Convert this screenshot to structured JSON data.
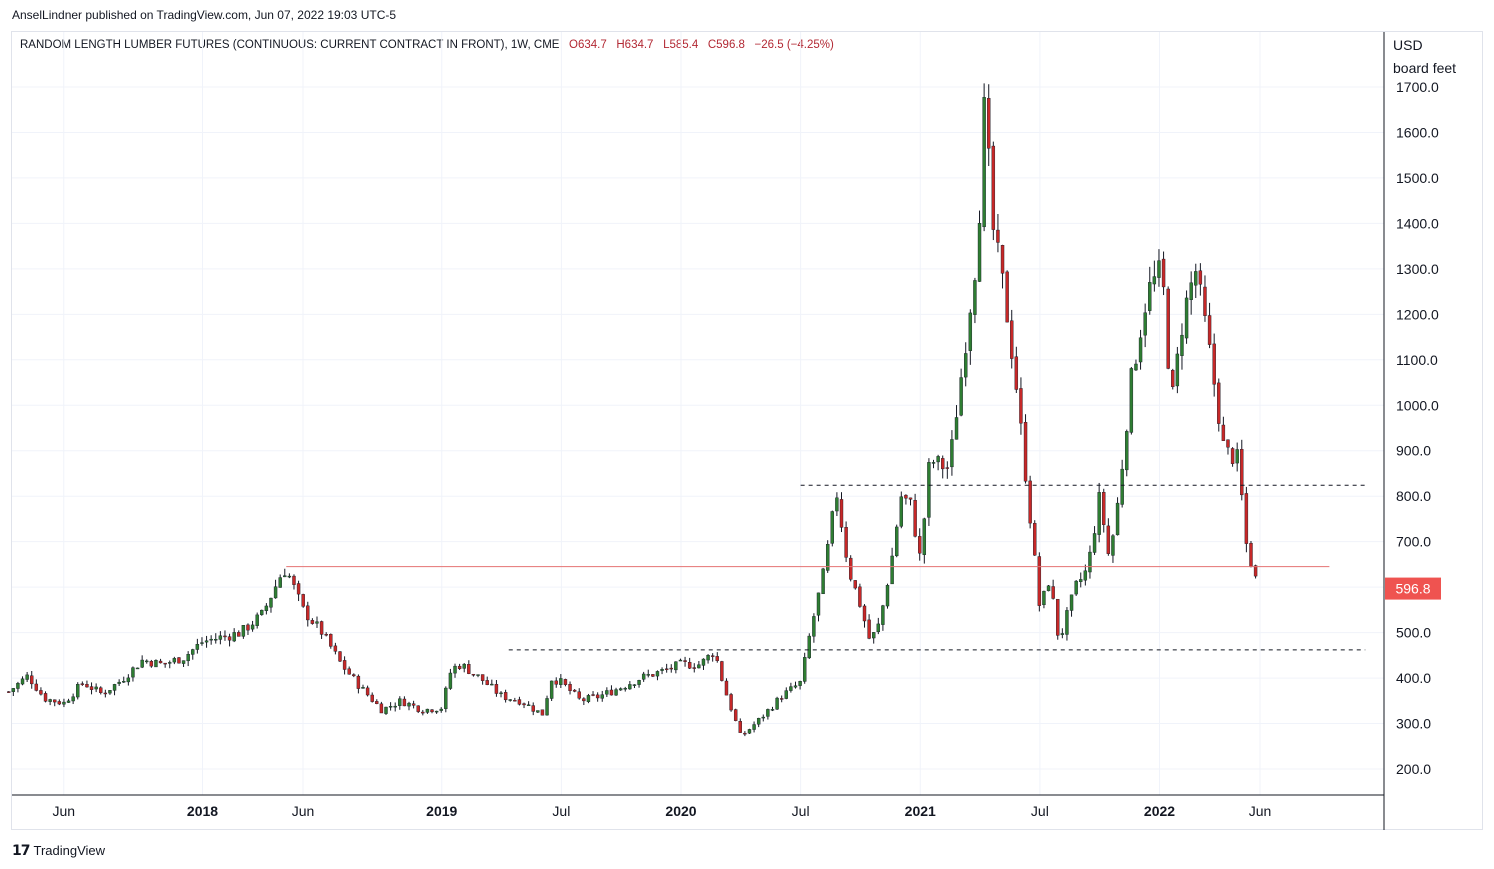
{
  "header": {
    "published": "AnselLindner published on TradingView.com, Jun 07, 2022 19:03 UTC-5"
  },
  "legend": {
    "symbol": "RANDOM LENGTH LUMBER FUTURES (CONTINUOUS: CURRENT CONTRACT IN FRONT), 1W, CME",
    "open": "O634.7",
    "high": "H634.7",
    "low": "L585.4",
    "close": "C596.8",
    "change": "−26.5 (−4.25%)"
  },
  "axis": {
    "unit_line1": "USD",
    "unit_line2": "board feet",
    "current_price_label": "596.8"
  },
  "footer": {
    "brand": "TradingView"
  },
  "colors": {
    "up": "#2e7d32",
    "down": "#c62828",
    "resistance_line": "#e57373",
    "dashed_line": "#131722",
    "price_tag": "#ef5350",
    "grid": "#f0f3fa"
  },
  "chart_data": {
    "type": "candlestick",
    "title": "RANDOM LENGTH LUMBER FUTURES (CONTINUOUS: CURRENT CONTRACT IN FRONT), 1W, CME",
    "ylabel": "USD board feet",
    "ylim": [
      150,
      1760
    ],
    "y_ticks": [
      200,
      300,
      400,
      500,
      600,
      700,
      800,
      900,
      1000,
      1100,
      1200,
      1300,
      1400,
      1500,
      1600,
      1700
    ],
    "x_ticks": [
      {
        "label": "Jun",
        "t": 2017.42,
        "bold": false
      },
      {
        "label": "2018",
        "t": 2018.0,
        "bold": true
      },
      {
        "label": "Jun",
        "t": 2018.42,
        "bold": false
      },
      {
        "label": "2019",
        "t": 2019.0,
        "bold": true
      },
      {
        "label": "Jul",
        "t": 2019.5,
        "bold": false
      },
      {
        "label": "2020",
        "t": 2020.0,
        "bold": true
      },
      {
        "label": "Jul",
        "t": 2020.5,
        "bold": false
      },
      {
        "label": "2021",
        "t": 2021.0,
        "bold": true
      },
      {
        "label": "Jul",
        "t": 2021.5,
        "bold": false
      },
      {
        "label": "2022",
        "t": 2022.0,
        "bold": true
      },
      {
        "label": "Jun",
        "t": 2022.42,
        "bold": false
      }
    ],
    "xlim": [
      2017.19,
      2022.71
    ],
    "grid": true,
    "last_close": 596.8,
    "horizontal_lines": [
      {
        "style": "solid",
        "value": 645,
        "t_start": 2018.35,
        "t_end": 2022.71
      },
      {
        "style": "dashed",
        "value": 824,
        "t_start": 2020.5,
        "t_end": 2022.86
      },
      {
        "style": "dashed",
        "value": 462,
        "t_start": 2019.28,
        "t_end": 2022.86
      }
    ],
    "close_path": [
      [
        2017.19,
        370
      ],
      [
        2017.27,
        405
      ],
      [
        2017.34,
        355
      ],
      [
        2017.42,
        345
      ],
      [
        2017.5,
        390
      ],
      [
        2017.58,
        365
      ],
      [
        2017.66,
        395
      ],
      [
        2017.75,
        440
      ],
      [
        2017.83,
        430
      ],
      [
        2017.92,
        445
      ],
      [
        2018.0,
        480
      ],
      [
        2018.08,
        490
      ],
      [
        2018.16,
        500
      ],
      [
        2018.25,
        540
      ],
      [
        2018.33,
        630
      ],
      [
        2018.35,
        640
      ],
      [
        2018.42,
        550
      ],
      [
        2018.5,
        500
      ],
      [
        2018.58,
        430
      ],
      [
        2018.66,
        380
      ],
      [
        2018.75,
        330
      ],
      [
        2018.83,
        350
      ],
      [
        2018.92,
        330
      ],
      [
        2019.0,
        335
      ],
      [
        2019.04,
        420
      ],
      [
        2019.08,
        430
      ],
      [
        2019.16,
        400
      ],
      [
        2019.25,
        360
      ],
      [
        2019.33,
        350
      ],
      [
        2019.42,
        320
      ],
      [
        2019.46,
        400
      ],
      [
        2019.5,
        390
      ],
      [
        2019.58,
        350
      ],
      [
        2019.66,
        360
      ],
      [
        2019.75,
        380
      ],
      [
        2019.83,
        400
      ],
      [
        2019.92,
        415
      ],
      [
        2020.0,
        430
      ],
      [
        2020.08,
        430
      ],
      [
        2020.14,
        460
      ],
      [
        2020.18,
        380
      ],
      [
        2020.25,
        270
      ],
      [
        2020.33,
        310
      ],
      [
        2020.42,
        360
      ],
      [
        2020.5,
        390
      ],
      [
        2020.54,
        500
      ],
      [
        2020.6,
        640
      ],
      [
        2020.65,
        810
      ],
      [
        2020.7,
        640
      ],
      [
        2020.75,
        560
      ],
      [
        2020.79,
        480
      ],
      [
        2020.83,
        520
      ],
      [
        2020.88,
        660
      ],
      [
        2020.92,
        800
      ],
      [
        2020.96,
        780
      ],
      [
        2021.0,
        660
      ],
      [
        2021.04,
        880
      ],
      [
        2021.08,
        870
      ],
      [
        2021.12,
        860
      ],
      [
        2021.18,
        1100
      ],
      [
        2021.24,
        1350
      ],
      [
        2021.27,
        1680
      ],
      [
        2021.3,
        1400
      ],
      [
        2021.35,
        1250
      ],
      [
        2021.4,
        1050
      ],
      [
        2021.45,
        800
      ],
      [
        2021.5,
        550
      ],
      [
        2021.54,
        620
      ],
      [
        2021.58,
        480
      ],
      [
        2021.65,
        600
      ],
      [
        2021.7,
        640
      ],
      [
        2021.75,
        800
      ],
      [
        2021.79,
        660
      ],
      [
        2021.83,
        800
      ],
      [
        2021.88,
        1050
      ],
      [
        2021.95,
        1250
      ],
      [
        2022.01,
        1300
      ],
      [
        2022.05,
        1000
      ],
      [
        2022.1,
        1200
      ],
      [
        2022.15,
        1300
      ],
      [
        2022.2,
        1150
      ],
      [
        2022.27,
        900
      ],
      [
        2022.33,
        880
      ],
      [
        2022.36,
        700
      ],
      [
        2022.4,
        620
      ],
      [
        2022.42,
        596.8
      ]
    ]
  }
}
